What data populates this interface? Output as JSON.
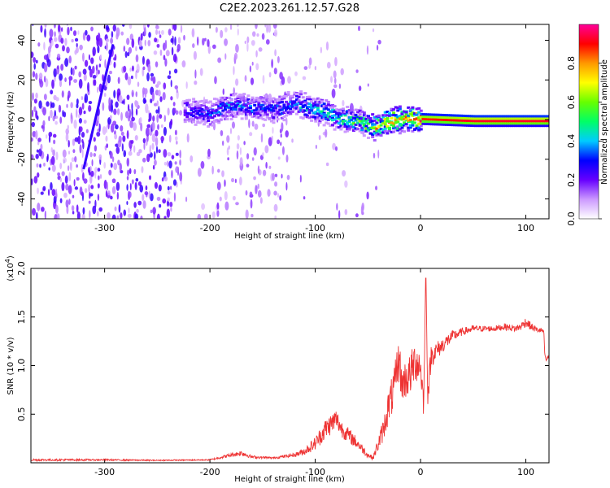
{
  "title": "C2E2.2023.261.12.57.G28",
  "chart_data": [
    {
      "type": "heatmap",
      "xlabel": "Height of straight line (km)",
      "ylabel": "Frequency (Hz)",
      "xlim": [
        -370,
        122
      ],
      "ylim": [
        -50,
        48
      ],
      "xticks": [
        -300,
        -200,
        -100,
        0,
        100
      ],
      "yticks": [
        -40,
        -20,
        0,
        20,
        40
      ],
      "colorbar": {
        "label": "Normalized spectral amplitude",
        "range": [
          0,
          1
        ],
        "ticks": [
          0.0,
          0.2,
          0.4,
          0.6,
          0.8
        ],
        "colors": [
          "#ffffff",
          "#cc99ff",
          "#6600ff",
          "#0000ff",
          "#00ccff",
          "#00ff66",
          "#66ff00",
          "#ffff00",
          "#ff9900",
          "#ff0000",
          "#ff0099"
        ]
      },
      "ridge": {
        "x": [
          -225,
          -200,
          -180,
          -160,
          -140,
          -120,
          -100,
          -80,
          -60,
          -45,
          -30,
          -15,
          0,
          50,
          100,
          120
        ],
        "y": [
          5,
          4,
          8,
          7,
          6,
          9,
          6,
          2,
          0,
          -3,
          0,
          1,
          1,
          0,
          0,
          0
        ],
        "amplitude": [
          0.3,
          0.35,
          0.4,
          0.35,
          0.35,
          0.4,
          0.45,
          0.5,
          0.6,
          0.75,
          0.8,
          0.85,
          0.9,
          0.95,
          0.95,
          0.95
        ]
      },
      "streak": {
        "x": [
          -320,
          -292
        ],
        "y": [
          -25,
          38
        ]
      }
    },
    {
      "type": "line",
      "xlabel": "Height of straight line (km)",
      "ylabel": "SNR (10 * v/v)",
      "scale_label": "(x10^4)",
      "xlim": [
        -370,
        122
      ],
      "ylim": [
        0,
        2.0
      ],
      "xticks": [
        -300,
        -200,
        -100,
        0,
        100
      ],
      "yticks": [
        0.5,
        1.0,
        1.5,
        2.0
      ],
      "color": "#ee3333",
      "series": [
        {
          "x": [
            -370,
            -300,
            -250,
            -200,
            -180,
            -170,
            -160,
            -140,
            -120,
            -110,
            -100,
            -90,
            -80,
            -75,
            -70,
            -60,
            -50,
            -45,
            -40,
            -35,
            -30,
            -25,
            -22,
            -20,
            -18,
            -15,
            -10,
            -5,
            0,
            3,
            5,
            7,
            10,
            15,
            20,
            30,
            40,
            50,
            60,
            70,
            80,
            90,
            95,
            100,
            105,
            110,
            115,
            117,
            118,
            119,
            122
          ],
          "y": [
            0.03,
            0.03,
            0.025,
            0.03,
            0.08,
            0.1,
            0.06,
            0.05,
            0.08,
            0.12,
            0.2,
            0.35,
            0.45,
            0.35,
            0.3,
            0.2,
            0.08,
            0.05,
            0.2,
            0.35,
            0.6,
            0.75,
            1.0,
            1.05,
            0.8,
            0.85,
            0.9,
            1.05,
            1.0,
            0.6,
            1.9,
            0.7,
            1.1,
            1.15,
            1.2,
            1.3,
            1.35,
            1.38,
            1.38,
            1.38,
            1.4,
            1.38,
            1.4,
            1.45,
            1.4,
            1.37,
            1.36,
            1.35,
            1.12,
            1.05,
            1.1
          ]
        }
      ],
      "noise": [
        0.012,
        0.008,
        0.006,
        0.006,
        0.02,
        0.03,
        0.015,
        0.01,
        0.02,
        0.04,
        0.07,
        0.11,
        0.11,
        0.09,
        0.08,
        0.06,
        0.03,
        0.02,
        0.08,
        0.12,
        0.18,
        0.22,
        0.22,
        0.22,
        0.18,
        0.2,
        0.22,
        0.22,
        0.18,
        0.14,
        0.14,
        0.14,
        0.12,
        0.1,
        0.08,
        0.06,
        0.04,
        0.035,
        0.03,
        0.03,
        0.035,
        0.035,
        0.04,
        0.05,
        0.04,
        0.03,
        0.03,
        0.03,
        0.02,
        0.02,
        0.02
      ]
    }
  ]
}
